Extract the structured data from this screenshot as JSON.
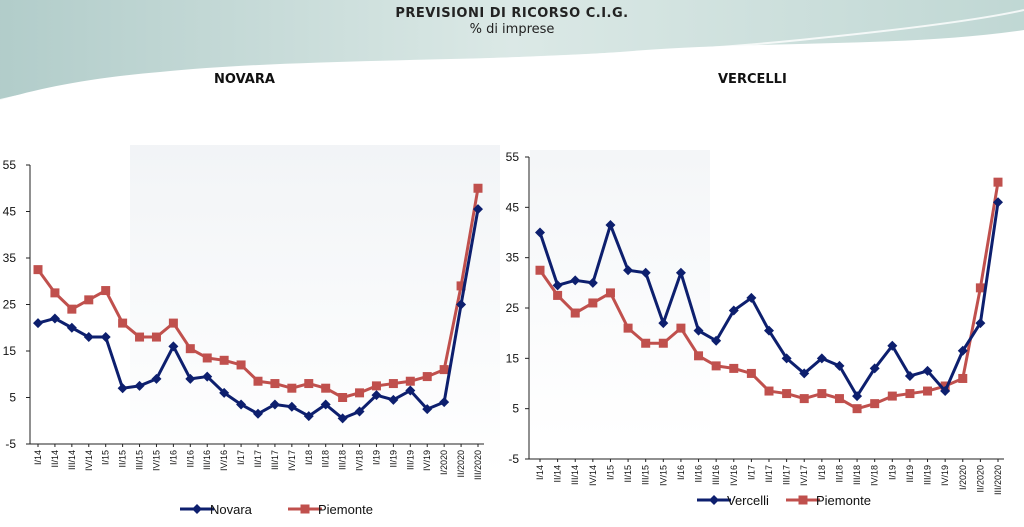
{
  "header": {
    "title": "PREVISIONI DI RICORSO C.I.G.",
    "subtitle": "% di imprese"
  },
  "colors": {
    "series_a": "#0d1f6e",
    "series_b": "#c0504d"
  },
  "categories": [
    "I/14",
    "II/14",
    "III/14",
    "IV/14",
    "I/15",
    "II/15",
    "III/15",
    "IV/15",
    "I/16",
    "II/16",
    "III/16",
    "IV/16",
    "I/17",
    "II/17",
    "III/17",
    "IV/17",
    "I/18",
    "II/18",
    "III/18",
    "IV/18",
    "I/19",
    "II/19",
    "III/19",
    "IV/19",
    "I/2020",
    "II/2020",
    "III/2020"
  ],
  "chart_data": [
    {
      "type": "line",
      "title": "NOVARA",
      "ylim": [
        -5,
        55
      ],
      "yticks": [
        "-5",
        "5",
        "15",
        "25",
        "35",
        "45",
        "55"
      ],
      "legend_position": "bottom",
      "series": [
        {
          "name": "Novara",
          "marker": "diamond",
          "values": [
            21,
            22,
            20,
            18,
            18,
            7,
            7.5,
            9,
            16,
            9,
            9.5,
            6,
            3.5,
            1.5,
            3.5,
            3,
            1,
            3.5,
            0.5,
            2,
            5.5,
            4.5,
            6.5,
            2.5,
            4,
            25,
            45.5
          ]
        },
        {
          "name": "Piemonte",
          "marker": "square",
          "values": [
            32.5,
            27.5,
            24,
            26,
            28,
            21,
            18,
            18,
            21,
            15.5,
            13.5,
            13,
            12,
            8.5,
            8,
            7,
            8,
            7,
            5,
            6,
            7.5,
            8,
            8.5,
            9.5,
            11,
            29,
            50
          ]
        }
      ]
    },
    {
      "type": "line",
      "title": "VERCELLI",
      "ylim": [
        -5,
        55
      ],
      "yticks": [
        "-5",
        "5",
        "15",
        "25",
        "35",
        "45",
        "55"
      ],
      "legend_position": "bottom",
      "series": [
        {
          "name": "Vercelli",
          "marker": "diamond",
          "values": [
            40,
            29.5,
            30.5,
            30,
            41.5,
            32.5,
            32,
            22,
            32,
            20.5,
            18.5,
            24.5,
            27,
            20.5,
            15,
            12,
            15,
            13.5,
            7.5,
            13,
            17.5,
            11.5,
            12.5,
            8.5,
            16.5,
            22,
            46
          ]
        },
        {
          "name": "Piemonte",
          "marker": "square",
          "values": [
            32.5,
            27.5,
            24,
            26,
            28,
            21,
            18,
            18,
            21,
            15.5,
            13.5,
            13,
            12,
            8.5,
            8,
            7,
            8,
            7,
            5,
            6,
            7.5,
            8,
            8.5,
            9.5,
            11,
            29,
            50
          ]
        }
      ]
    }
  ]
}
